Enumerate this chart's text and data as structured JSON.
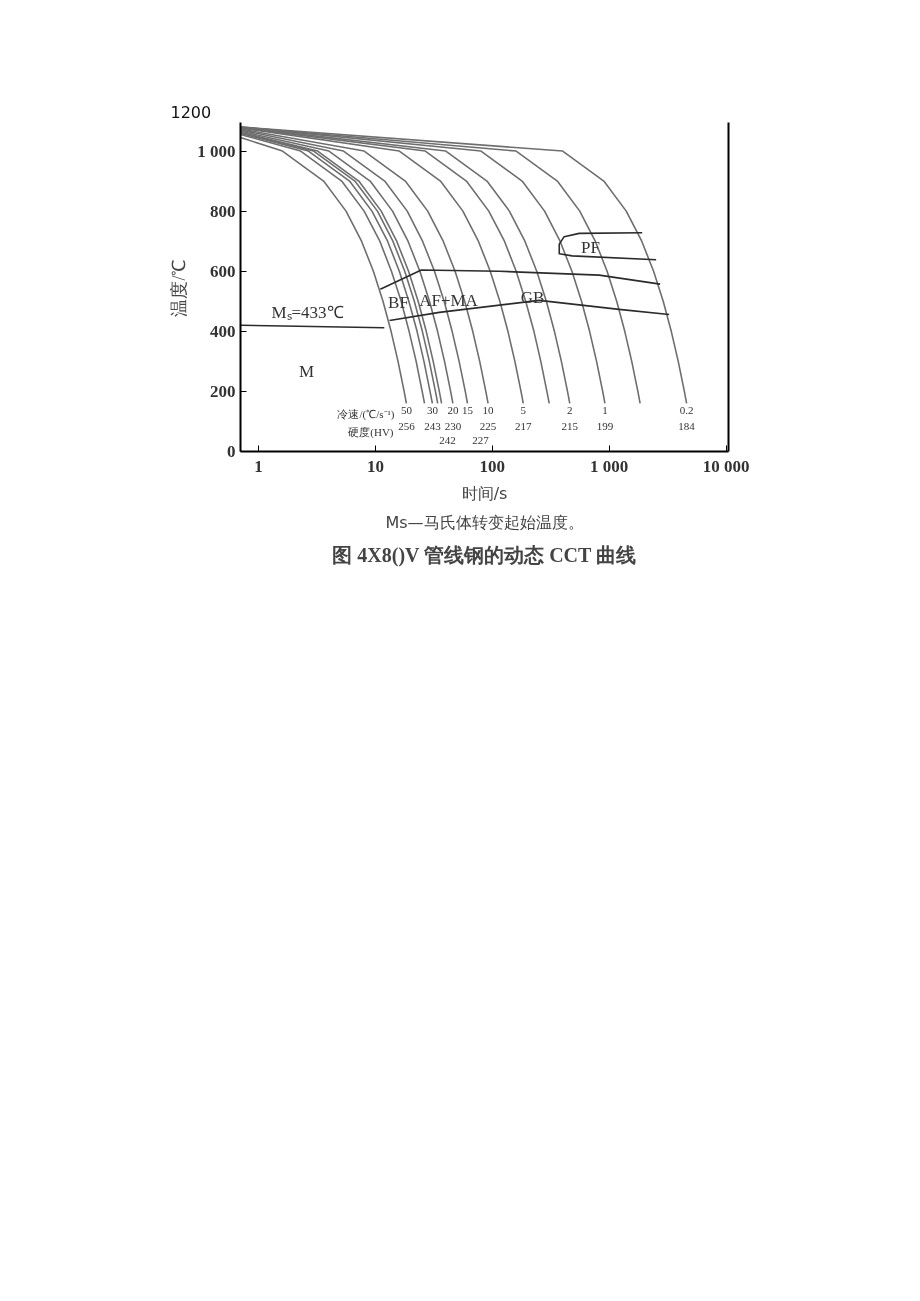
{
  "chart_data": {
    "type": "line",
    "title": "图 4X8()V 管线钢的动态 CCT 曲线",
    "xlabel": "时间/s",
    "ylabel": "温度/℃",
    "log": "x",
    "xlim": [
      0.7,
      10500
    ],
    "ylim": [
      0,
      1095
    ],
    "xticks": [
      1,
      10,
      100,
      {
        "value": 1000,
        "label": "1 000"
      },
      {
        "value": 10000,
        "label": "10 000"
      }
    ],
    "yticks": [
      0,
      200,
      400,
      600,
      800,
      {
        "value": 1000,
        "label": "1 000"
      }
    ],
    "series": [
      {
        "color": "#6e6e6e",
        "x": [
          0.7,
          1.6,
          3.6,
          5.6,
          7.6,
          9.6,
          11.6,
          13.6,
          15.6,
          17.6,
          18.4
        ],
        "values": [
          1045,
          1000,
          900,
          800,
          700,
          600,
          500,
          400,
          300,
          200,
          160
        ]
      },
      {
        "color": "#6e6e6e",
        "x": [
          0.7,
          2.29,
          5.14,
          8,
          10.9,
          13.7,
          16.6,
          19.4,
          22.3,
          25.1,
          26.3
        ],
        "values": [
          1055,
          1000,
          900,
          800,
          700,
          600,
          500,
          400,
          300,
          200,
          160
        ]
      },
      {
        "color": "#6e6e6e",
        "x": [
          0.7,
          2.67,
          6,
          9.33,
          12.7,
          16,
          19.3,
          22.7,
          26,
          29.3,
          30.7
        ],
        "values": [
          1059,
          1000,
          900,
          800,
          700,
          600,
          500,
          400,
          300,
          200,
          160
        ]
      },
      {
        "color": "#6e6e6e",
        "x": [
          0.7,
          2.96,
          6.67,
          10.4,
          14.1,
          17.8,
          21.5,
          25.2,
          28.9,
          32.6,
          34.1
        ],
        "values": [
          1061,
          1000,
          900,
          800,
          700,
          600,
          500,
          400,
          300,
          200,
          160
        ]
      },
      {
        "color": "#6e6e6e",
        "x": [
          0.7,
          3.2,
          7.2,
          11.2,
          15.2,
          19.2,
          23.2,
          27.2,
          31.2,
          35.2,
          36.8
        ],
        "values": [
          1062,
          1000,
          900,
          800,
          700,
          600,
          500,
          400,
          300,
          200,
          160
        ]
      },
      {
        "color": "#6e6e6e",
        "x": [
          0.7,
          4,
          9,
          14,
          19,
          24,
          29,
          34,
          39,
          44,
          46
        ],
        "values": [
          1066,
          1000,
          900,
          800,
          700,
          600,
          500,
          400,
          300,
          200,
          160
        ]
      },
      {
        "color": "#6e6e6e",
        "x": [
          0.7,
          5.33,
          12,
          18.7,
          25.3,
          32,
          38.7,
          45.3,
          52,
          58.7,
          61.3
        ],
        "values": [
          1070,
          1000,
          900,
          800,
          700,
          600,
          500,
          400,
          300,
          200,
          160
        ]
      },
      {
        "color": "#6e6e6e",
        "x": [
          0.7,
          8,
          18,
          28,
          38,
          48,
          58,
          68,
          78,
          88,
          92
        ],
        "values": [
          1073,
          1000,
          900,
          800,
          700,
          600,
          500,
          400,
          300,
          200,
          160
        ]
      },
      {
        "color": "#6e6e6e",
        "x": [
          0.7,
          16,
          36,
          56,
          76,
          96,
          116,
          136,
          156,
          176,
          184
        ],
        "values": [
          1077,
          1000,
          900,
          800,
          700,
          600,
          500,
          400,
          300,
          200,
          160
        ]
      },
      {
        "color": "#6e6e6e",
        "x": [
          0.7,
          26.7,
          60,
          93.3,
          127,
          160,
          193,
          227,
          260,
          293,
          307
        ],
        "values": [
          1078,
          1000,
          900,
          800,
          700,
          600,
          500,
          400,
          300,
          200,
          160
        ]
      },
      {
        "color": "#6e6e6e",
        "x": [
          0.7,
          40,
          90,
          140,
          190,
          240,
          290,
          340,
          390,
          440,
          460
        ],
        "values": [
          1079,
          1000,
          900,
          800,
          700,
          600,
          500,
          400,
          300,
          200,
          160
        ]
      },
      {
        "color": "#6e6e6e",
        "x": [
          0.7,
          80,
          180,
          280,
          380,
          480,
          580,
          680,
          780,
          880,
          920
        ],
        "values": [
          1080,
          1000,
          900,
          800,
          700,
          600,
          500,
          400,
          300,
          200,
          160
        ]
      },
      {
        "color": "#6e6e6e",
        "x": [
          0.7,
          160,
          360,
          560,
          760,
          960,
          1160,
          1360,
          1560,
          1760,
          1840
        ],
        "values": [
          1080,
          1000,
          900,
          800,
          700,
          600,
          500,
          400,
          300,
          200,
          160
        ]
      },
      {
        "color": "#6e6e6e",
        "x": [
          0.7,
          400,
          900,
          1400,
          1900,
          2400,
          2900,
          3400,
          3900,
          4400,
          4600
        ],
        "values": [
          1080,
          1000,
          900,
          800,
          700,
          600,
          500,
          400,
          300,
          200,
          160
        ]
      },
      {
        "color": "#2b2b2b",
        "x": [
          0.7,
          11.9
        ],
        "values": [
          420,
          412
        ]
      },
      {
        "color": "#2b2b2b",
        "x": [
          11,
          24.7,
          114,
          822,
          2730
        ],
        "values": [
          540,
          604,
          600,
          587,
          557
        ]
      },
      {
        "color": "#2b2b2b",
        "x": [
          13.2,
          35.2,
          252,
          1217,
          3260
        ],
        "values": [
          436,
          463,
          503,
          473,
          456
        ]
      },
      {
        "color": "#2b2b2b",
        "x": [
          2523,
          483,
          374,
          374,
          412,
          554,
          1915
        ],
        "values": [
          638,
          651,
          658,
          690,
          715,
          726,
          728
        ]
      }
    ],
    "annotations": [
      "1200",
      "Ms—马氏体转变起始温度。",
      "Mₛ=433℃",
      "M",
      "BF",
      "AF+MA",
      "GB",
      "PF",
      "冷速/(℃/s⁻¹)",
      "硬度(HV)",
      "242",
      "227",
      {
        "text": "50",
        "x": 18.4,
        "y": 160
      },
      {
        "text": "256",
        "x": 18.4,
        "y": 160
      },
      {
        "text": "30",
        "x": 30.7,
        "y": 160
      },
      {
        "text": "243",
        "x": 30.7,
        "y": 160
      },
      {
        "text": "20",
        "x": 46,
        "y": 160
      },
      {
        "text": "230",
        "x": 46,
        "y": 160
      },
      {
        "text": "15",
        "x": 61.3,
        "y": 160
      },
      {
        "text": "10",
        "x": 92,
        "y": 160
      },
      {
        "text": "225",
        "x": 92,
        "y": 160
      },
      {
        "text": "5",
        "x": 184,
        "y": 160
      },
      {
        "text": "217",
        "x": 184,
        "y": 160
      },
      {
        "text": "2",
        "x": 460,
        "y": 160
      },
      {
        "text": "215",
        "x": 460,
        "y": 160
      },
      {
        "text": "1",
        "x": 920,
        "y": 160
      },
      {
        "text": "199",
        "x": 920,
        "y": 160
      },
      {
        "text": "0.2",
        "x": 4600,
        "y": 160
      },
      {
        "text": "184",
        "x": 4600,
        "y": 160
      }
    ]
  }
}
